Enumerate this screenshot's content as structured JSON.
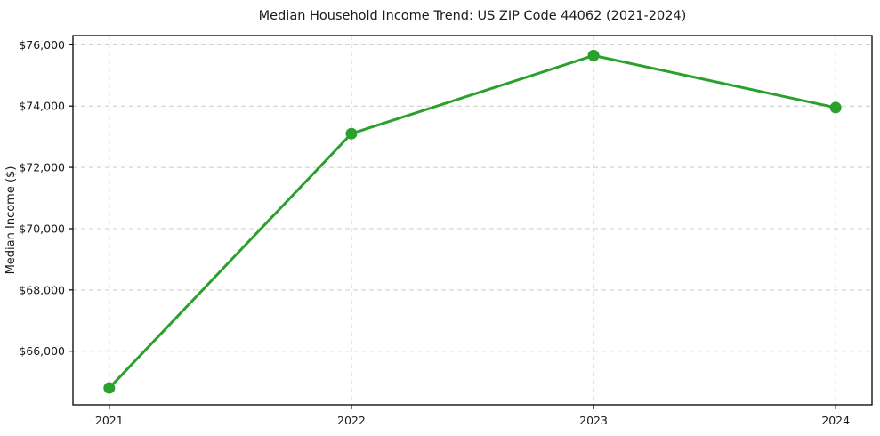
{
  "chart_data": {
    "type": "line",
    "title": "Median Household Income Trend: US ZIP Code 44062 (2021-2024)",
    "xlabel": "",
    "ylabel": "Median Income ($)",
    "x": [
      2021,
      2022,
      2023,
      2024
    ],
    "values": [
      64800,
      73100,
      75650,
      73950
    ],
    "series_name": "Median Household Income",
    "xtick_labels": [
      "2021",
      "2022",
      "2023",
      "2024"
    ],
    "yticks": [
      66000,
      68000,
      70000,
      72000,
      74000,
      76000
    ],
    "ytick_labels": [
      "$66,000",
      "$68,000",
      "$70,000",
      "$72,000",
      "$74,000",
      "$76,000"
    ],
    "xlim": [
      2020.85,
      2024.15
    ],
    "ylim": [
      64250,
      76300
    ],
    "grid": true,
    "legend": "none",
    "line_color": "#2ca02c",
    "marker_color": "#2ca02c",
    "grid_color": "#cccccc",
    "axis_color": "#000000",
    "background_color": "#ffffff"
  }
}
